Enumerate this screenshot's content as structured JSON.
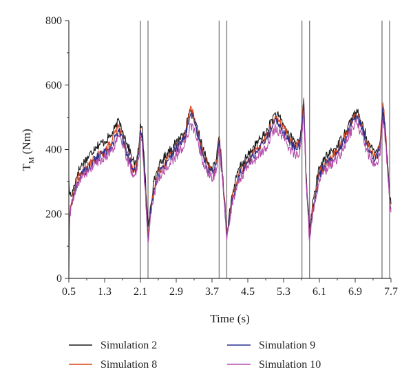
{
  "chart_data": {
    "type": "line",
    "xlabel": "Time (s)",
    "ylabel": "T",
    "ylabel_sub": "M",
    "ylabel_unit": " (Nm)",
    "xlim": [
      0.5,
      7.7
    ],
    "ylim": [
      0,
      800
    ],
    "x_ticks": [
      0.5,
      1.3,
      2.1,
      2.9,
      3.7,
      4.5,
      5.3,
      6.1,
      6.9,
      7.7
    ],
    "x_tick_labels": [
      "0.5",
      "1.3",
      "2.1",
      "2.9",
      "3.7",
      "4.5",
      "5.3",
      "6.1",
      "6.9",
      "7.7"
    ],
    "y_ticks": [
      0,
      200,
      400,
      600,
      800
    ],
    "y_tick_labels": [
      "0",
      "200",
      "400",
      "600",
      "800"
    ],
    "vlines": [
      2.1,
      2.27,
      3.86,
      4.03,
      5.71,
      5.88,
      7.5,
      7.67
    ],
    "vline_color": "#777777",
    "grid": false,
    "legend_position": "bottom",
    "series": [
      {
        "name": "Simulation 2",
        "color": "#1a1a1a",
        "x": [
          0.5,
          0.52,
          0.56,
          0.62,
          0.7,
          0.8,
          0.95,
          1.1,
          1.3,
          1.45,
          1.55,
          1.62,
          1.7,
          1.8,
          1.92,
          2.0,
          2.06,
          2.1,
          2.14,
          2.2,
          2.27,
          2.32,
          2.4,
          2.5,
          2.7,
          2.9,
          3.1,
          3.22,
          3.3,
          3.4,
          3.5,
          3.62,
          3.72,
          3.8,
          3.86,
          3.92,
          3.98,
          4.03,
          4.07,
          4.15,
          4.3,
          4.5,
          4.7,
          4.9,
          5.0,
          5.1,
          5.2,
          5.3,
          5.45,
          5.58,
          5.66,
          5.71,
          5.75,
          5.8,
          5.88,
          5.92,
          6.0,
          6.1,
          6.3,
          6.5,
          6.7,
          6.85,
          6.95,
          7.05,
          7.15,
          7.25,
          7.35,
          7.45,
          7.52,
          7.58,
          7.64,
          7.67,
          7.7
        ],
        "y": [
          310,
          260,
          255,
          290,
          330,
          355,
          380,
          410,
          425,
          445,
          470,
          490,
          460,
          420,
          370,
          350,
          400,
          480,
          470,
          330,
          160,
          220,
          300,
          345,
          390,
          420,
          460,
          520,
          490,
          450,
          400,
          350,
          340,
          370,
          440,
          350,
          250,
          140,
          180,
          260,
          340,
          380,
          420,
          450,
          480,
          510,
          500,
          475,
          440,
          420,
          435,
          490,
          545,
          330,
          155,
          200,
          270,
          345,
          385,
          410,
          460,
          505,
          515,
          480,
          440,
          405,
          390,
          420,
          515,
          450,
          330,
          260,
          230
        ]
      },
      {
        "name": "Simulation 8",
        "color": "#d8451a",
        "x": [
          0.5,
          0.52,
          0.56,
          0.62,
          0.7,
          0.8,
          0.95,
          1.1,
          1.3,
          1.45,
          1.55,
          1.62,
          1.7,
          1.8,
          1.92,
          2.0,
          2.06,
          2.1,
          2.14,
          2.2,
          2.27,
          2.32,
          2.4,
          2.5,
          2.7,
          2.9,
          3.1,
          3.22,
          3.3,
          3.4,
          3.5,
          3.62,
          3.72,
          3.8,
          3.86,
          3.92,
          3.98,
          4.03,
          4.07,
          4.15,
          4.3,
          4.5,
          4.7,
          4.9,
          5.0,
          5.1,
          5.2,
          5.3,
          5.45,
          5.58,
          5.66,
          5.71,
          5.75,
          5.8,
          5.88,
          5.92,
          6.0,
          6.1,
          6.3,
          6.5,
          6.7,
          6.85,
          6.95,
          7.05,
          7.15,
          7.25,
          7.35,
          7.45,
          7.52,
          7.58,
          7.64,
          7.67,
          7.7
        ],
        "y": [
          120,
          200,
          235,
          270,
          310,
          330,
          350,
          375,
          395,
          420,
          455,
          470,
          440,
          390,
          345,
          335,
          390,
          465,
          440,
          300,
          125,
          200,
          280,
          330,
          370,
          405,
          450,
          535,
          495,
          440,
          385,
          340,
          330,
          360,
          435,
          345,
          240,
          130,
          170,
          250,
          325,
          365,
          400,
          435,
          465,
          495,
          490,
          465,
          430,
          405,
          420,
          480,
          560,
          320,
          135,
          190,
          255,
          330,
          365,
          395,
          445,
          500,
          505,
          470,
          425,
          395,
          375,
          405,
          545,
          455,
          320,
          250,
          220
        ]
      },
      {
        "name": "Simulation 9",
        "color": "#2a2f8f",
        "x": [
          0.5,
          0.52,
          0.56,
          0.62,
          0.7,
          0.8,
          0.95,
          1.1,
          1.3,
          1.45,
          1.55,
          1.62,
          1.7,
          1.8,
          1.92,
          2.0,
          2.06,
          2.1,
          2.14,
          2.2,
          2.27,
          2.32,
          2.4,
          2.5,
          2.7,
          2.9,
          3.1,
          3.22,
          3.3,
          3.4,
          3.5,
          3.62,
          3.72,
          3.8,
          3.86,
          3.92,
          3.98,
          4.03,
          4.07,
          4.15,
          4.3,
          4.5,
          4.7,
          4.9,
          5.0,
          5.1,
          5.2,
          5.3,
          5.45,
          5.58,
          5.66,
          5.71,
          5.75,
          5.8,
          5.88,
          5.92,
          6.0,
          6.1,
          6.3,
          6.5,
          6.7,
          6.85,
          6.95,
          7.05,
          7.15,
          7.25,
          7.35,
          7.45,
          7.52,
          7.58,
          7.64,
          7.67,
          7.7
        ],
        "y": [
          115,
          195,
          230,
          265,
          300,
          325,
          345,
          370,
          390,
          410,
          440,
          455,
          430,
          385,
          340,
          330,
          385,
          460,
          435,
          295,
          120,
          195,
          275,
          325,
          365,
          400,
          440,
          510,
          485,
          435,
          380,
          335,
          325,
          355,
          430,
          340,
          235,
          125,
          165,
          245,
          320,
          360,
          395,
          430,
          455,
          485,
          480,
          455,
          420,
          400,
          415,
          475,
          555,
          315,
          130,
          185,
          250,
          325,
          360,
          390,
          440,
          495,
          500,
          465,
          420,
          390,
          370,
          400,
          530,
          445,
          315,
          245,
          215
        ]
      },
      {
        "name": "Simulation 10",
        "color": "#b44ca8",
        "x": [
          0.5,
          0.52,
          0.56,
          0.62,
          0.7,
          0.8,
          0.95,
          1.1,
          1.3,
          1.45,
          1.55,
          1.62,
          1.7,
          1.8,
          1.92,
          2.0,
          2.06,
          2.1,
          2.14,
          2.2,
          2.27,
          2.32,
          2.4,
          2.5,
          2.7,
          2.9,
          3.1,
          3.22,
          3.3,
          3.4,
          3.5,
          3.62,
          3.72,
          3.8,
          3.86,
          3.92,
          3.98,
          4.03,
          4.07,
          4.15,
          4.3,
          4.5,
          4.7,
          4.9,
          5.0,
          5.1,
          5.2,
          5.3,
          5.45,
          5.58,
          5.66,
          5.71,
          5.75,
          5.8,
          5.88,
          5.92,
          6.0,
          6.1,
          6.3,
          6.5,
          6.7,
          6.85,
          6.95,
          7.05,
          7.15,
          7.25,
          7.35,
          7.45,
          7.52,
          7.58,
          7.64,
          7.67,
          7.7
        ],
        "y": [
          0,
          190,
          225,
          255,
          295,
          315,
          335,
          355,
          375,
          395,
          420,
          440,
          415,
          370,
          325,
          320,
          370,
          445,
          425,
          285,
          110,
          185,
          260,
          310,
          345,
          380,
          420,
          480,
          460,
          415,
          360,
          320,
          310,
          340,
          410,
          330,
          225,
          120,
          160,
          235,
          305,
          345,
          375,
          405,
          435,
          465,
          455,
          435,
          400,
          380,
          395,
          450,
          520,
          305,
          115,
          175,
          240,
          310,
          345,
          370,
          420,
          470,
          480,
          445,
          400,
          370,
          350,
          380,
          495,
          420,
          300,
          235,
          205
        ]
      }
    ]
  }
}
